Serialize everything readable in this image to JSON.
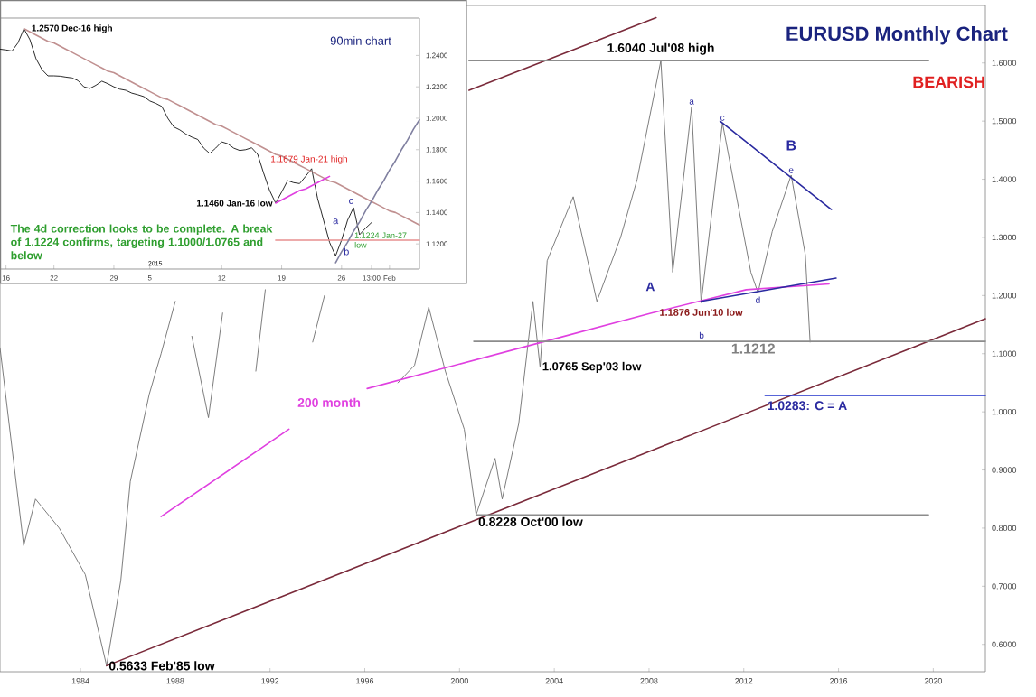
{
  "chart_data": [
    {
      "type": "line",
      "title": "EURUSD Monthly Chart",
      "xlim": [
        1980.6,
        2022.2
      ],
      "ylim": [
        0.553,
        1.699
      ],
      "xticks": [
        1984,
        1988,
        1992,
        1996,
        2000,
        2004,
        2008,
        2012,
        2016,
        2020
      ],
      "yticks": [
        {
          "value": 0.6,
          "label": "0.6000"
        },
        {
          "value": 0.7,
          "label": "0.7000"
        },
        {
          "value": 0.8,
          "label": "0.8000"
        },
        {
          "value": 0.9,
          "label": "0.9000"
        },
        {
          "value": 1.0,
          "label": "1.0000"
        },
        {
          "value": 1.1,
          "label": "1.1000"
        },
        {
          "value": 1.2,
          "label": "1.2000"
        },
        {
          "value": 1.3,
          "label": "1.3000"
        },
        {
          "value": 1.4,
          "label": "1.4000"
        },
        {
          "value": 1.5,
          "label": "1.5000"
        },
        {
          "value": 1.6,
          "label": "1.6000"
        }
      ],
      "series": [
        {
          "color": "#6e6e6e",
          "x": [
            1980.6,
            1981.6,
            1982.1,
            1983.1,
            1984.2,
            1985.1,
            1985.7,
            1986.1,
            1986.9,
            1987.4,
            1988.0,
            1988.3,
            1988.7,
            1989.4,
            1990.0,
            1990.5,
            1991.4,
            1991.8,
            1992.9,
            1993.8,
            1994.3,
            1995.5,
            1997.4,
            1998.1,
            1998.7,
            1999.4,
            2000.2,
            2000.7,
            2001.5,
            2001.8,
            2002.5,
            2003.1,
            2003.4,
            2003.7,
            2004.8,
            2005.8,
            2006.8,
            2007.5,
            2008.5,
            2009.0,
            2009.8,
            2010.2,
            2011.1,
            2012.3,
            2012.6,
            2013.2,
            2014.0,
            2014.6,
            2014.8
          ],
          "values": [
            1.11,
            0.77,
            0.85,
            0.8,
            0.72,
            0.5633,
            0.71,
            0.88,
            1.03,
            1.1,
            1.19,
            null,
            1.13,
            0.99,
            1.17,
            null,
            1.07,
            1.21,
            null,
            1.12,
            1.2,
            null,
            1.05,
            1.08,
            1.18,
            1.07,
            0.97,
            0.8228,
            0.92,
            0.85,
            0.98,
            1.19,
            1.0765,
            1.26,
            1.37,
            1.19,
            1.3,
            1.4,
            1.604,
            1.24,
            1.525,
            1.1876,
            1.497,
            1.24,
            1.205,
            1.31,
            1.407,
            1.27,
            1.12
          ]
        },
        {
          "color": "#7a2a3a",
          "x": [
            1985.1,
            2022.2
          ],
          "values": [
            0.5633,
            1.16
          ]
        },
        {
          "color": "#7a2a3a",
          "x": [
            2000.4,
            2008.3
          ],
          "values": [
            1.553,
            1.678
          ]
        },
        {
          "color": "#e040e0",
          "x": [
            1987.4,
            1992.8,
            1994.5,
            1996.1,
            2003.5,
            2008.1,
            2012.1,
            2015.6
          ],
          "values": [
            0.82,
            0.97,
            null,
            1.04,
            1.12,
            1.17,
            1.21,
            1.22
          ]
        },
        {
          "color": "#2a2aa0",
          "x": [
            2011.0,
            2015.7
          ],
          "values": [
            1.5,
            1.348
          ]
        },
        {
          "color": "#2a2aa0",
          "x": [
            2010.2,
            2015.9
          ],
          "values": [
            1.19,
            1.23
          ]
        },
        {
          "color": "#8c8c8c",
          "x": [
            2000.4,
            2019.8
          ],
          "values": [
            1.604,
            1.604
          ]
        },
        {
          "color": "#8c8c8c",
          "x": [
            2000.6,
            2022.2
          ],
          "values": [
            1.1212,
            1.1212
          ]
        },
        {
          "color": "#8c8c8c",
          "x": [
            2000.7,
            2019.8
          ],
          "values": [
            0.8228,
            0.8228
          ]
        },
        {
          "color": "#2233cc",
          "x": [
            2012.9,
            2022.2
          ],
          "values": [
            1.0283,
            1.0283
          ]
        }
      ],
      "annotations": [
        "BEARISH",
        {
          "text": "1.6040 Jul'08 high",
          "x": 2008.5,
          "y": 1.604
        },
        {
          "text": "1.1876 Jun'10 low",
          "x": 2010.2,
          "y": 1.1876
        },
        {
          "text": "0.8228 Oct'00 low",
          "x": 2000.7,
          "y": 0.8228
        },
        {
          "text": "0.5633 Feb'85 low",
          "x": 1985.1,
          "y": 0.5633
        },
        {
          "text": "1.0765 Sep'03 low",
          "x": 2003.4,
          "y": 1.0765
        },
        {
          "text": "1.1212",
          "x": 2012.4,
          "y": 1.1212
        },
        {
          "text": "1.0283: C = A",
          "x": 2012.9,
          "y": 1.0283
        },
        "200 month",
        "A",
        {
          "text": "a",
          "x": 2009.8,
          "y": 1.525
        },
        "b",
        {
          "text": "c",
          "x": 2011.1,
          "y": 1.497
        },
        {
          "text": "d",
          "x": 2012.6,
          "y": 1.205
        },
        {
          "text": "e",
          "x": 2014.0,
          "y": 1.407
        },
        "B"
      ]
    },
    {
      "type": "line",
      "title": "90min chart",
      "categories": [
        null,
        "16",
        null,
        null,
        null,
        null,
        null,
        null,
        null,
        "22",
        null,
        null,
        null,
        null,
        null,
        null,
        null,
        null,
        null,
        "29",
        null,
        null,
        null,
        null,
        null,
        "5",
        null,
        null,
        null,
        null,
        null,
        null,
        null,
        null,
        null,
        null,
        null,
        "12",
        null,
        null,
        null,
        null,
        null,
        null,
        null,
        null,
        null,
        "19",
        null,
        null,
        null,
        null,
        null,
        null,
        null,
        null,
        null,
        "26",
        null,
        null,
        null,
        null,
        "13:00",
        null,
        null,
        "Feb",
        null,
        null,
        null,
        null,
        null
      ],
      "ylim": [
        1.104,
        1.2638
      ],
      "yticks": [
        {
          "value": 1.12,
          "label": "1.1200"
        },
        {
          "value": 1.14,
          "label": "1.1400"
        },
        {
          "value": 1.16,
          "label": "1.1600"
        },
        {
          "value": 1.18,
          "label": "1.1800"
        },
        {
          "value": 1.2,
          "label": "1.2000"
        },
        {
          "value": 1.22,
          "label": "1.2200"
        },
        {
          "value": 1.24,
          "label": "1.2400"
        }
      ],
      "series": [
        {
          "color": "#111111",
          "values": [
            1.244,
            1.2435,
            1.2428,
            1.248,
            1.257,
            1.25,
            1.238,
            1.231,
            1.227,
            1.227,
            1.2268,
            1.2262,
            1.2257,
            1.224,
            1.22,
            1.219,
            1.221,
            1.2236,
            1.222,
            1.22,
            1.2185,
            1.2178,
            1.216,
            1.215,
            1.2138,
            1.211,
            1.2095,
            1.2075,
            1.2,
            1.1945,
            1.1926,
            1.19,
            1.188,
            1.1865,
            1.181,
            1.1776,
            1.181,
            1.185,
            1.1838,
            1.181,
            1.1795,
            1.18,
            1.1812,
            1.177,
            1.165,
            1.154,
            1.146,
            1.153,
            1.1603,
            1.159,
            1.1584,
            1.163,
            1.1679,
            1.149,
            1.135,
            1.121,
            1.1124,
            1.1224,
            1.135,
            1.1431,
            1.1259,
            1.13,
            1.1336,
            null,
            null,
            null,
            null,
            null,
            null,
            null,
            null
          ]
        },
        {
          "color": "#c09090",
          "values": [
            null,
            null,
            null,
            null,
            1.257,
            1.255,
            1.253,
            1.251,
            1.249,
            1.248,
            1.246,
            1.244,
            1.242,
            1.24,
            1.238,
            1.236,
            1.234,
            1.232,
            1.23,
            1.229,
            1.227,
            1.225,
            1.223,
            1.221,
            1.219,
            1.217,
            1.215,
            1.213,
            1.212,
            1.21,
            1.208,
            1.206,
            1.204,
            1.202,
            1.2,
            1.198,
            1.196,
            1.195,
            1.193,
            1.191,
            1.189,
            1.187,
            1.185,
            1.183,
            1.181,
            1.179,
            1.177,
            1.176,
            1.174,
            1.172,
            1.17,
            1.168,
            1.166,
            1.164,
            1.162,
            1.16,
            1.159,
            1.157,
            1.155,
            1.153,
            1.151,
            1.149,
            1.147,
            1.145,
            1.143,
            1.141,
            1.14,
            1.138,
            1.136,
            1.134,
            1.132
          ]
        },
        {
          "color": "#e040e0",
          "values": [
            null,
            null,
            null,
            null,
            null,
            null,
            null,
            null,
            null,
            null,
            null,
            null,
            null,
            null,
            null,
            null,
            null,
            null,
            null,
            null,
            null,
            null,
            null,
            null,
            null,
            null,
            null,
            null,
            null,
            null,
            null,
            null,
            null,
            null,
            null,
            null,
            null,
            null,
            null,
            null,
            null,
            null,
            null,
            null,
            null,
            null,
            1.146,
            1.148,
            1.15,
            1.152,
            1.154,
            1.155,
            1.157,
            1.159,
            1.161,
            1.163,
            null,
            null,
            null,
            null,
            null,
            null,
            null,
            null,
            null,
            null,
            null,
            null,
            null,
            null,
            null
          ]
        },
        {
          "color": "#e89090",
          "values": [
            null,
            null,
            null,
            null,
            null,
            null,
            null,
            null,
            null,
            null,
            null,
            null,
            null,
            null,
            null,
            null,
            null,
            null,
            null,
            null,
            null,
            null,
            null,
            null,
            null,
            null,
            null,
            null,
            null,
            null,
            null,
            null,
            null,
            null,
            null,
            null,
            null,
            null,
            null,
            null,
            null,
            null,
            null,
            null,
            null,
            null,
            1.1224,
            1.1224,
            1.1224,
            1.1224,
            1.1224,
            1.1224,
            1.1224,
            1.1224,
            1.1224,
            1.1224,
            1.1224,
            1.1224,
            1.1224,
            1.1224,
            1.1224,
            1.1224,
            1.1224,
            1.1224,
            1.1224,
            1.1224,
            1.1224,
            1.1224,
            1.1224,
            1.1224,
            1.1224
          ]
        },
        {
          "color": "#8080a0",
          "values": [
            null,
            null,
            null,
            null,
            null,
            null,
            null,
            null,
            null,
            null,
            null,
            null,
            null,
            null,
            null,
            null,
            null,
            null,
            null,
            null,
            null,
            null,
            null,
            null,
            null,
            null,
            null,
            null,
            null,
            null,
            null,
            null,
            null,
            null,
            null,
            null,
            null,
            null,
            null,
            null,
            null,
            null,
            null,
            null,
            null,
            null,
            null,
            null,
            null,
            null,
            null,
            null,
            null,
            null,
            null,
            null,
            1.108,
            1.115,
            1.121,
            1.128,
            1.134,
            1.141,
            1.147,
            1.154,
            1.16,
            1.167,
            1.173,
            1.18,
            1.186,
            1.193,
            1.199
          ]
        }
      ],
      "annotations": [
        "The 4d correction looks to be complete. A break of 1.1224 confirms, targeting 1.1000/1.0765 and below",
        "2015",
        "1.2570 Dec-16 high",
        "1.1460 Jan-16 low",
        "1.1679 Jan-21 high",
        "1.1224 Jan-27 low",
        "a",
        "b",
        "c"
      ]
    }
  ]
}
